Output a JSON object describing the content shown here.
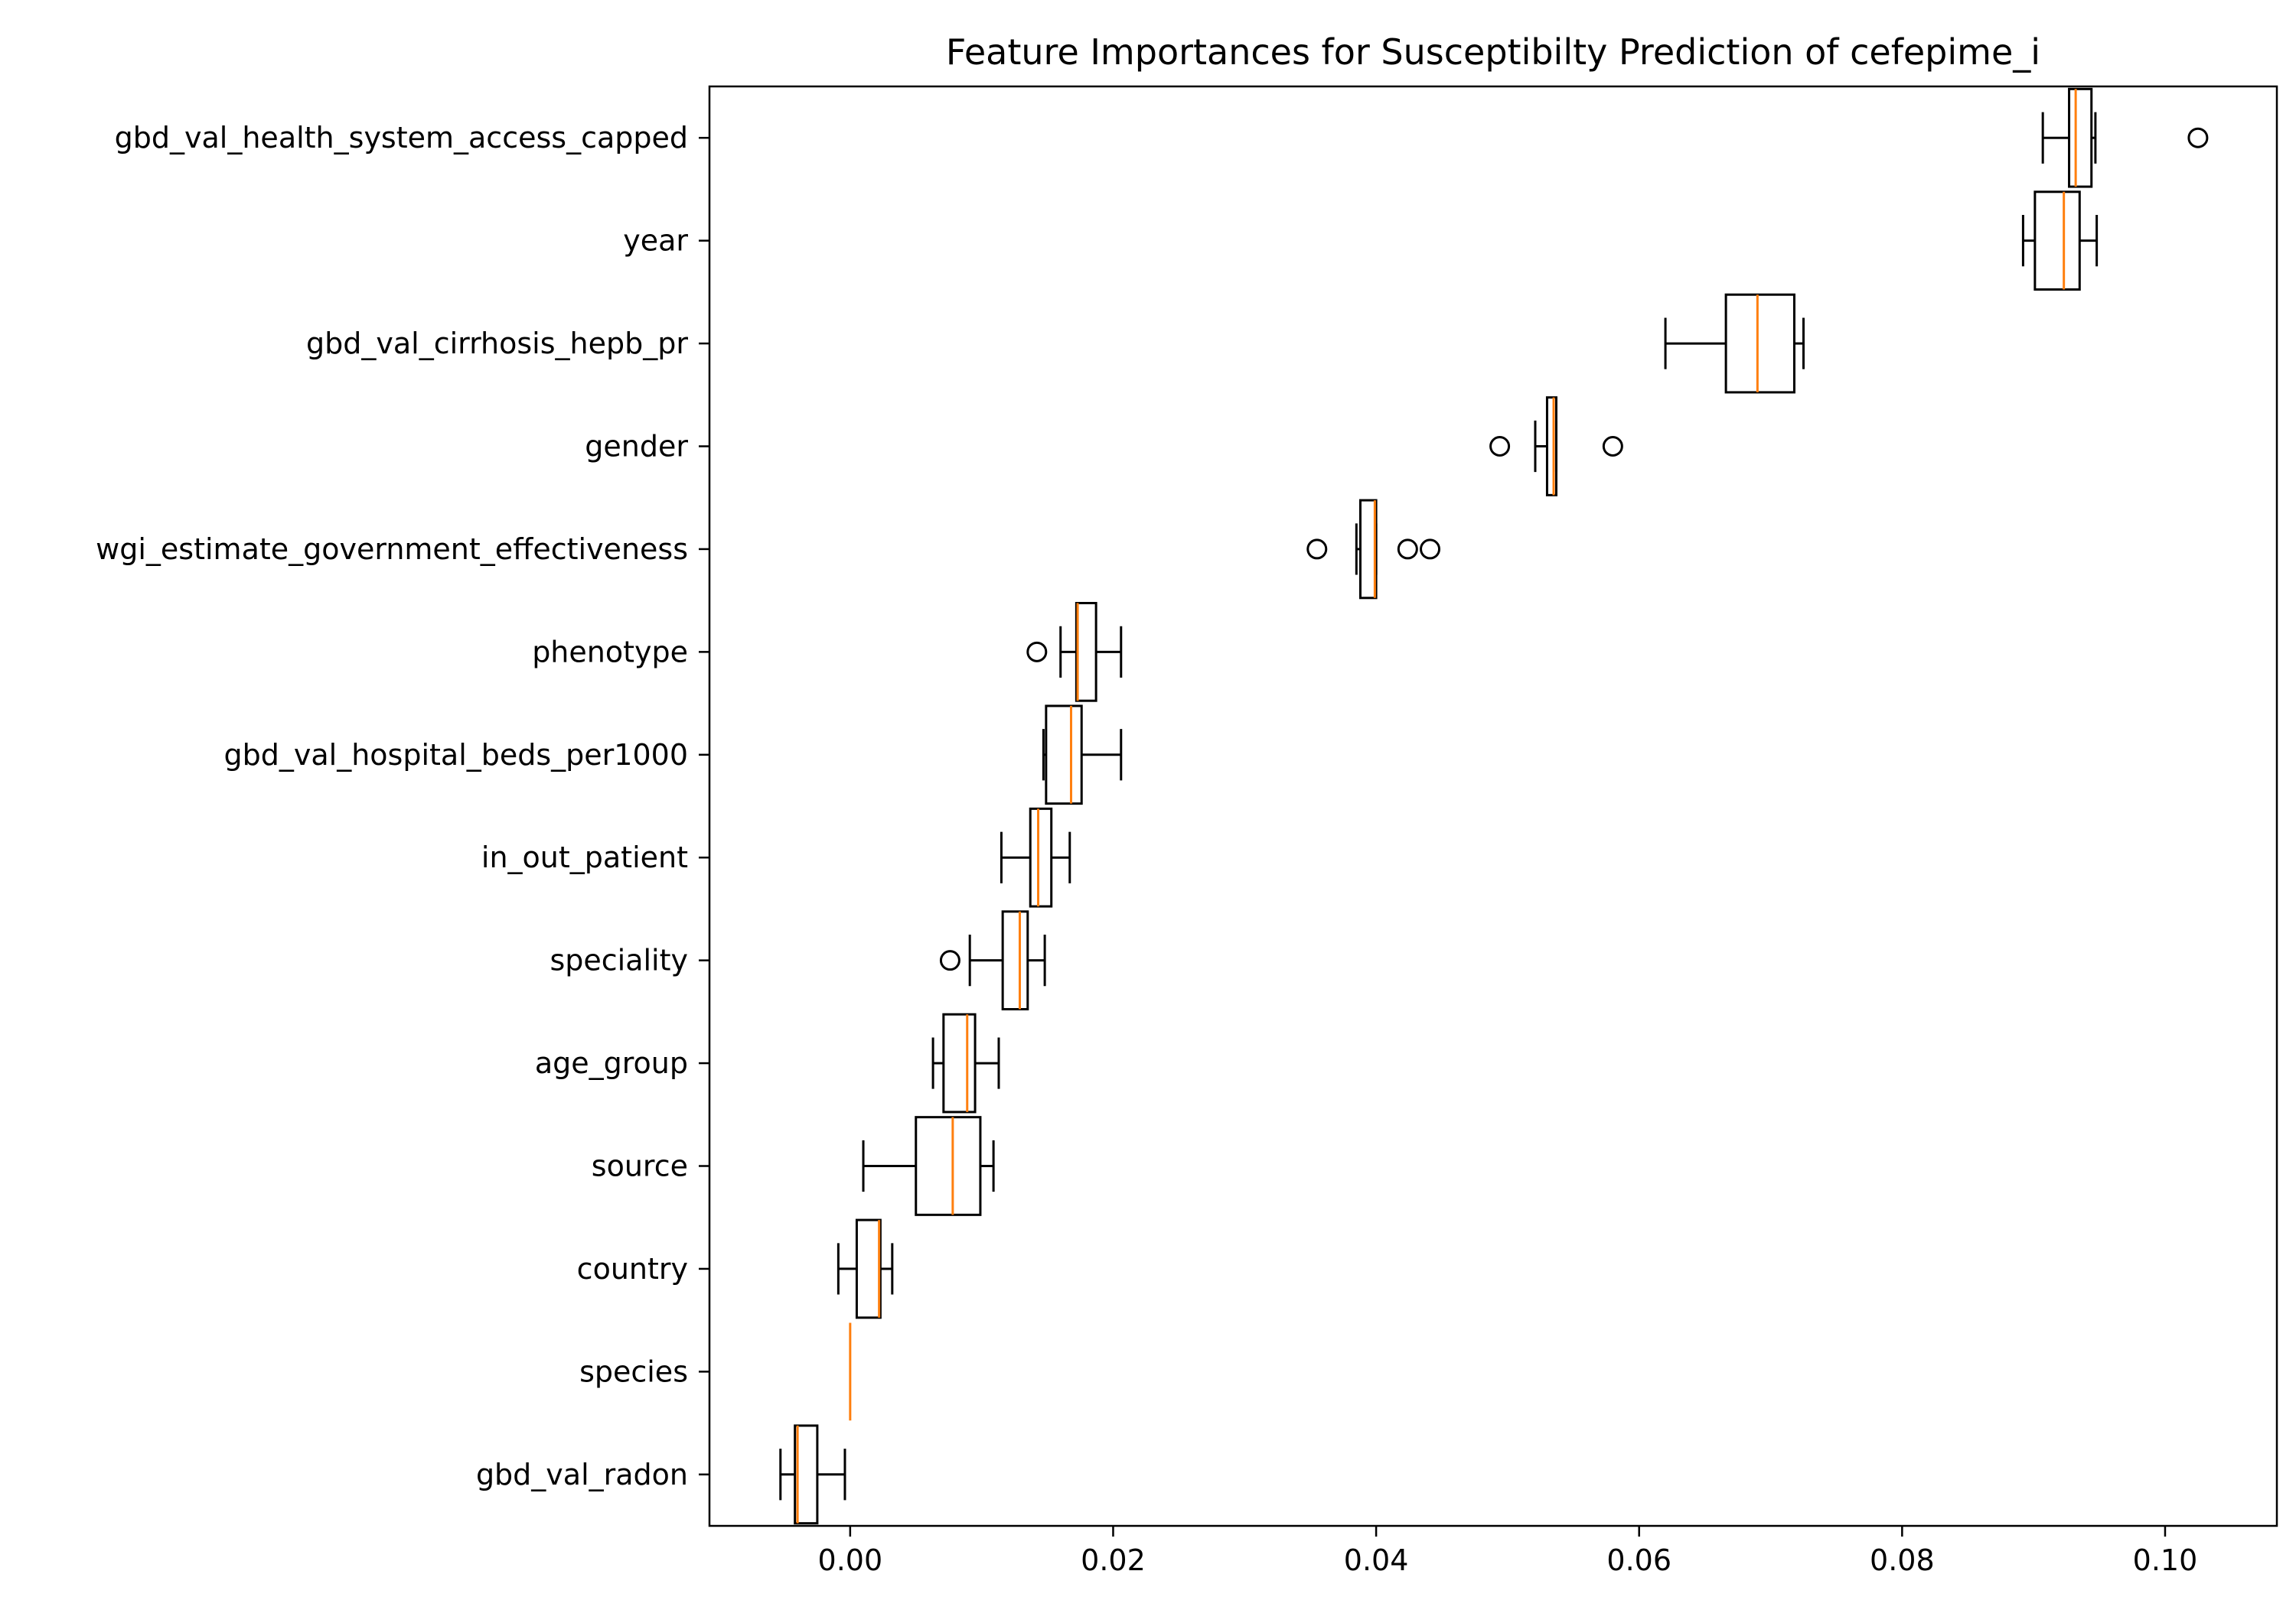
{
  "colors": {
    "box_edge": "#000000",
    "median": "#ff7f0e",
    "background": "#ffffff"
  },
  "chart_data": {
    "type": "boxplot",
    "orientation": "horizontal",
    "title": "Feature Importances for Susceptibilty Prediction of cefepime_i",
    "xlabel": "",
    "ylabel": "",
    "xlim": [
      -0.0107,
      0.1085
    ],
    "xticks": [
      0.0,
      0.02,
      0.04,
      0.06,
      0.08,
      0.1
    ],
    "xtick_labels": [
      "0.00",
      "0.02",
      "0.04",
      "0.06",
      "0.08",
      "0.10"
    ],
    "grid": false,
    "features": [
      {
        "label": "gbd_val_health_system_access_capped",
        "whislo": 0.0907,
        "q1": 0.0927,
        "med": 0.0932,
        "q3": 0.0944,
        "whishi": 0.0947,
        "fliers": [
          0.1025
        ]
      },
      {
        "label": "year",
        "whislo": 0.0892,
        "q1": 0.0901,
        "med": 0.0923,
        "q3": 0.0935,
        "whishi": 0.0948,
        "fliers": []
      },
      {
        "label": "gbd_val_cirrhosis_hepb_pr",
        "whislo": 0.062,
        "q1": 0.0666,
        "med": 0.069,
        "q3": 0.0718,
        "whishi": 0.0725,
        "fliers": []
      },
      {
        "label": "gender",
        "whislo": 0.0521,
        "q1": 0.053,
        "med": 0.0535,
        "q3": 0.0537,
        "whishi": 0.0537,
        "fliers": [
          0.0494,
          0.058
        ]
      },
      {
        "label": "wgi_estimate_government_effectiveness",
        "whislo": 0.0385,
        "q1": 0.0388,
        "med": 0.0399,
        "q3": 0.04,
        "whishi": 0.04,
        "fliers": [
          0.0355,
          0.0424,
          0.0441
        ]
      },
      {
        "label": "phenotype",
        "whislo": 0.016,
        "q1": 0.0172,
        "med": 0.0173,
        "q3": 0.0187,
        "whishi": 0.0206,
        "fliers": [
          0.0142
        ]
      },
      {
        "label": "gbd_val_hospital_beds_per1000",
        "whislo": 0.0147,
        "q1": 0.0149,
        "med": 0.0168,
        "q3": 0.0176,
        "whishi": 0.0206,
        "fliers": []
      },
      {
        "label": "in_out_patient",
        "whislo": 0.0115,
        "q1": 0.0137,
        "med": 0.0143,
        "q3": 0.0153,
        "whishi": 0.0167,
        "fliers": []
      },
      {
        "label": "speciality",
        "whislo": 0.0091,
        "q1": 0.0116,
        "med": 0.0129,
        "q3": 0.0135,
        "whishi": 0.0148,
        "fliers": [
          0.0076
        ]
      },
      {
        "label": "age_group",
        "whislo": 0.0063,
        "q1": 0.0071,
        "med": 0.0089,
        "q3": 0.0095,
        "whishi": 0.0113,
        "fliers": []
      },
      {
        "label": "source",
        "whislo": 0.001,
        "q1": 0.005,
        "med": 0.0078,
        "q3": 0.0099,
        "whishi": 0.0109,
        "fliers": []
      },
      {
        "label": "country",
        "whislo": -0.0009,
        "q1": 0.0005,
        "med": 0.0022,
        "q3": 0.0023,
        "whishi": 0.0032,
        "fliers": []
      },
      {
        "label": "species",
        "whislo": 0.0,
        "q1": 0.0,
        "med": 0.0,
        "q3": 0.0,
        "whishi": 0.0,
        "fliers": []
      },
      {
        "label": "gbd_val_radon",
        "whislo": -0.0053,
        "q1": -0.0042,
        "med": -0.004,
        "q3": -0.0025,
        "whishi": -0.0004,
        "fliers": []
      }
    ]
  }
}
